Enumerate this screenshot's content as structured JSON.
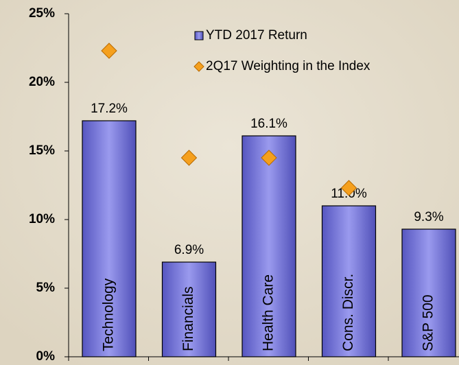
{
  "chart_data": {
    "type": "bar",
    "categories": [
      "Technology",
      "Financials",
      "Health Care",
      "Cons. Discr.",
      "S&P 500"
    ],
    "series": [
      {
        "name": "YTD 2017 Return",
        "type": "bar",
        "color": "#7474d8",
        "values": [
          17.2,
          6.9,
          16.1,
          11.0,
          9.3
        ],
        "value_labels": [
          "17.2%",
          "6.9%",
          "16.1%",
          "11.0%",
          "9.3%"
        ]
      },
      {
        "name": "2Q17 Weighting in the Index",
        "type": "scatter",
        "color": "#f5a01e",
        "values": [
          22.3,
          14.5,
          14.5,
          12.3,
          null
        ]
      }
    ],
    "ylim": [
      0,
      25
    ],
    "yticks": [
      {
        "value": 0,
        "label": "0%"
      },
      {
        "value": 5,
        "label": "5%"
      },
      {
        "value": 10,
        "label": "10%"
      },
      {
        "value": 15,
        "label": "15%"
      },
      {
        "value": 20,
        "label": "20%"
      },
      {
        "value": 25,
        "label": "25%"
      }
    ],
    "grid": false
  }
}
